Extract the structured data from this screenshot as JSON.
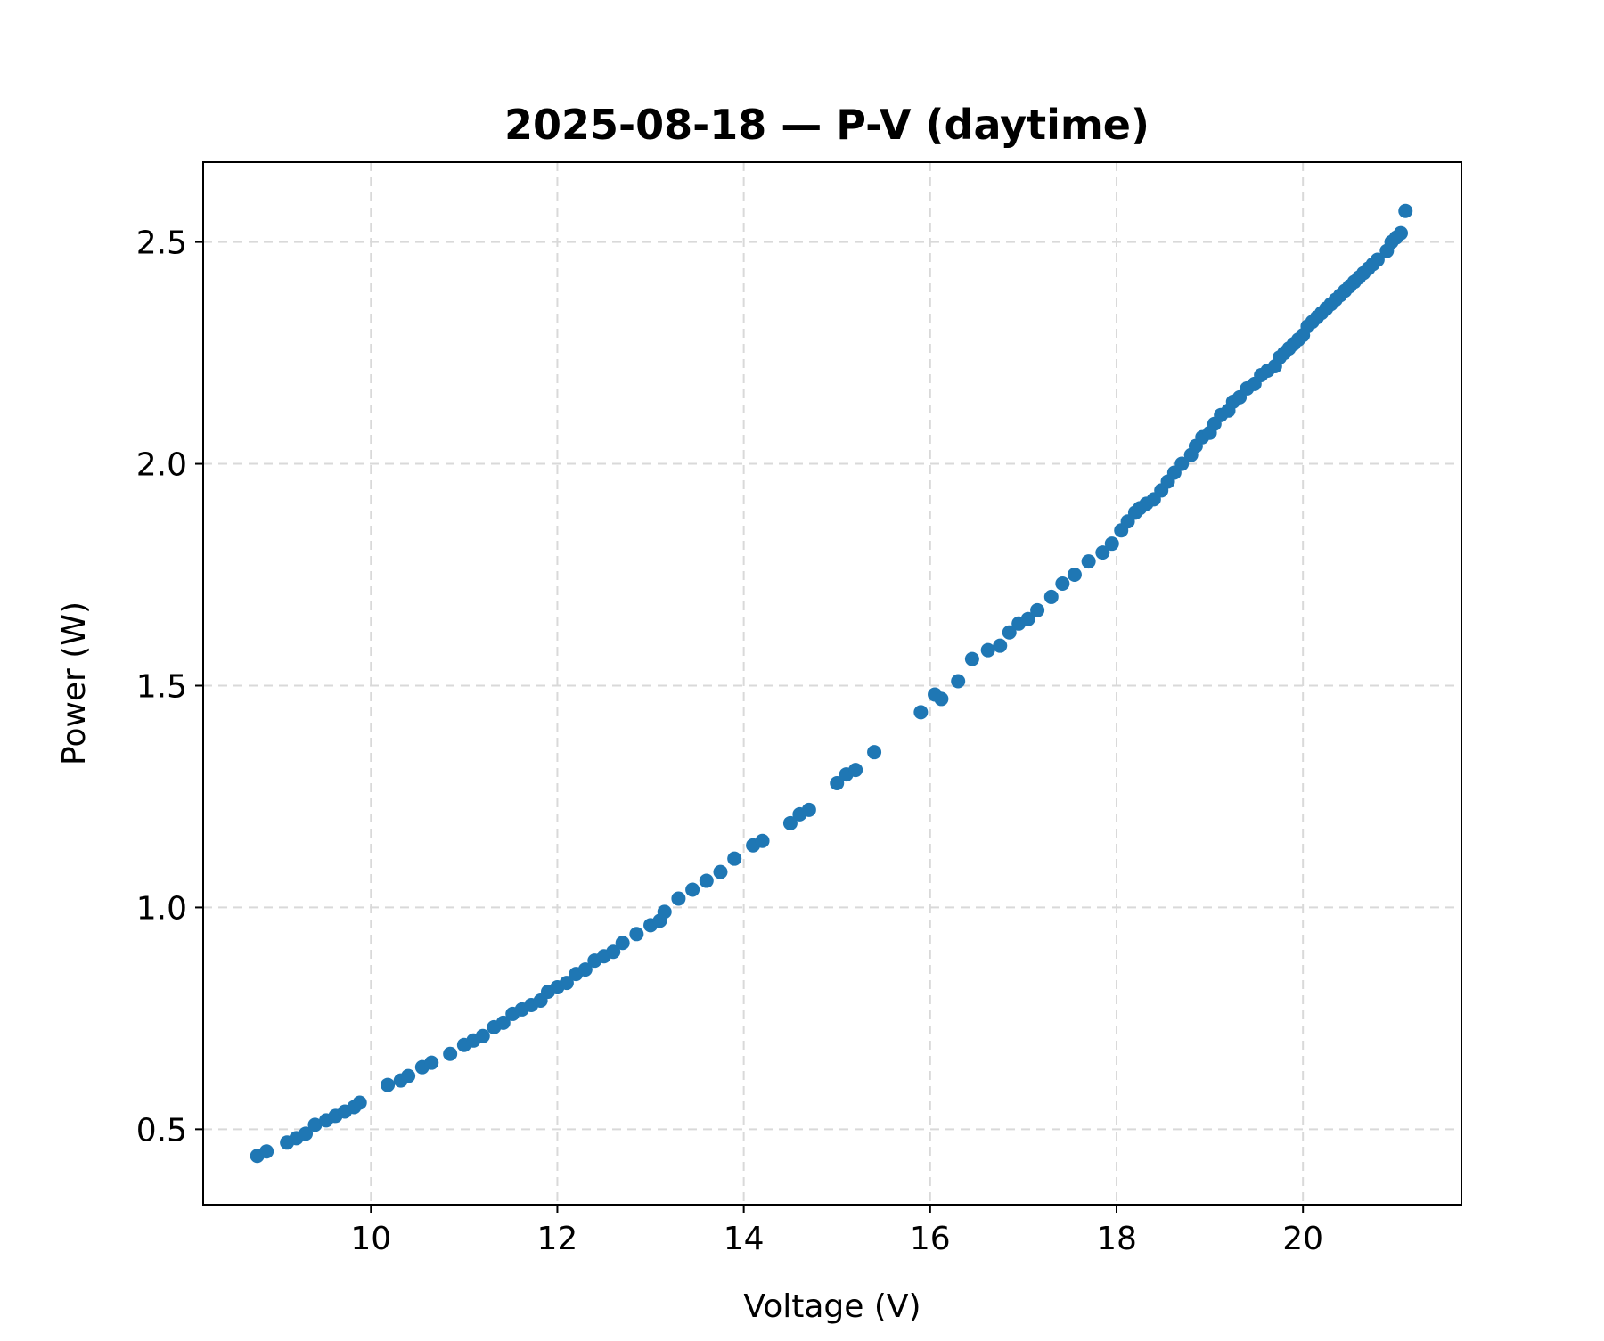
{
  "chart_data": {
    "type": "scatter",
    "title": "2025-08-18 — P-V (daytime)",
    "xlabel": "Voltage (V)",
    "ylabel": "Power (W)",
    "xlim": [
      8.2,
      21.7
    ],
    "ylim": [
      0.33,
      2.68
    ],
    "xticks": [
      10,
      12,
      14,
      16,
      18,
      20
    ],
    "yticks": [
      0.5,
      1.0,
      1.5,
      2.0,
      2.5
    ],
    "xtick_labels": [
      "10",
      "12",
      "14",
      "16",
      "18",
      "20"
    ],
    "ytick_labels": [
      "0.5",
      "1.0",
      "1.5",
      "2.0",
      "2.5"
    ],
    "grid": true,
    "legend": "none",
    "marker_color": "#1f77b4",
    "series": [
      {
        "x": [
          8.78,
          8.88,
          9.1,
          9.2,
          9.3,
          9.4,
          9.52,
          9.62,
          9.72,
          9.82,
          9.88,
          10.18,
          10.32,
          10.4,
          10.55,
          10.65,
          10.85,
          11.0,
          11.1,
          11.2,
          11.32,
          11.42,
          11.52,
          11.62,
          11.72,
          11.82,
          11.9,
          12.0,
          12.1,
          12.2,
          12.3,
          12.4,
          12.5,
          12.6,
          12.7,
          12.85,
          13.0,
          13.1,
          13.15,
          13.3,
          13.45,
          13.6,
          13.75,
          13.9,
          14.1,
          14.2,
          14.5,
          14.6,
          14.7,
          15.0,
          15.1,
          15.2,
          15.4,
          15.9,
          16.05,
          16.12,
          16.3,
          16.45,
          16.62,
          16.75,
          16.85,
          16.95,
          17.05,
          17.15,
          17.3,
          17.42,
          17.55,
          17.7,
          17.85,
          17.95,
          18.05,
          18.12,
          18.2,
          18.25,
          18.32,
          18.4,
          18.48,
          18.55,
          18.62,
          18.7,
          18.8,
          18.85,
          18.92,
          19.0,
          19.05,
          19.12,
          19.2,
          19.25,
          19.32,
          19.4,
          19.48,
          19.55,
          19.62,
          19.7,
          19.75,
          19.8,
          19.85,
          19.9,
          19.95,
          20.0,
          20.05,
          20.1,
          20.15,
          20.2,
          20.25,
          20.3,
          20.35,
          20.4,
          20.45,
          20.5,
          20.55,
          20.6,
          20.65,
          20.7,
          20.75,
          20.8,
          20.9,
          20.95,
          21.0,
          21.05,
          21.1
        ],
        "y": [
          0.44,
          0.45,
          0.47,
          0.48,
          0.49,
          0.51,
          0.52,
          0.53,
          0.54,
          0.55,
          0.56,
          0.6,
          0.61,
          0.62,
          0.64,
          0.65,
          0.67,
          0.69,
          0.7,
          0.71,
          0.73,
          0.74,
          0.76,
          0.77,
          0.78,
          0.79,
          0.81,
          0.82,
          0.83,
          0.85,
          0.86,
          0.88,
          0.89,
          0.9,
          0.92,
          0.94,
          0.96,
          0.97,
          0.99,
          1.02,
          1.04,
          1.06,
          1.08,
          1.11,
          1.14,
          1.15,
          1.19,
          1.21,
          1.22,
          1.28,
          1.3,
          1.31,
          1.35,
          1.44,
          1.48,
          1.47,
          1.51,
          1.56,
          1.58,
          1.59,
          1.62,
          1.64,
          1.65,
          1.67,
          1.7,
          1.73,
          1.75,
          1.78,
          1.8,
          1.82,
          1.85,
          1.87,
          1.89,
          1.9,
          1.91,
          1.92,
          1.94,
          1.96,
          1.98,
          2.0,
          2.02,
          2.04,
          2.06,
          2.07,
          2.09,
          2.11,
          2.12,
          2.14,
          2.15,
          2.17,
          2.18,
          2.2,
          2.21,
          2.22,
          2.24,
          2.25,
          2.26,
          2.27,
          2.28,
          2.29,
          2.31,
          2.32,
          2.33,
          2.34,
          2.35,
          2.36,
          2.37,
          2.38,
          2.39,
          2.4,
          2.41,
          2.42,
          2.43,
          2.44,
          2.45,
          2.46,
          2.48,
          2.5,
          2.51,
          2.52,
          2.57
        ]
      }
    ]
  }
}
